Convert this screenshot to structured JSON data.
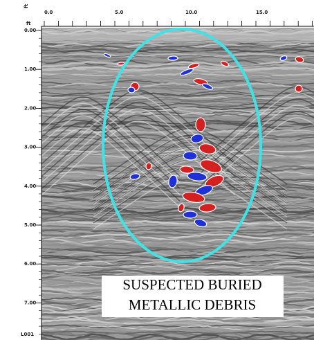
{
  "top_axis": {
    "unit": "ft",
    "labels": [
      "0.0",
      "5.0",
      "10.0",
      "15.0"
    ]
  },
  "left_axis": {
    "unit": "ft",
    "labels": [
      "0.00",
      "1.00",
      "2.00",
      "3.00",
      "4.00",
      "5.00",
      "6.00",
      "7.00"
    ]
  },
  "line_label": "L001",
  "annotation": [
    "SUSPECTED BURIED",
    "METALLIC DEBRIS"
  ]
}
